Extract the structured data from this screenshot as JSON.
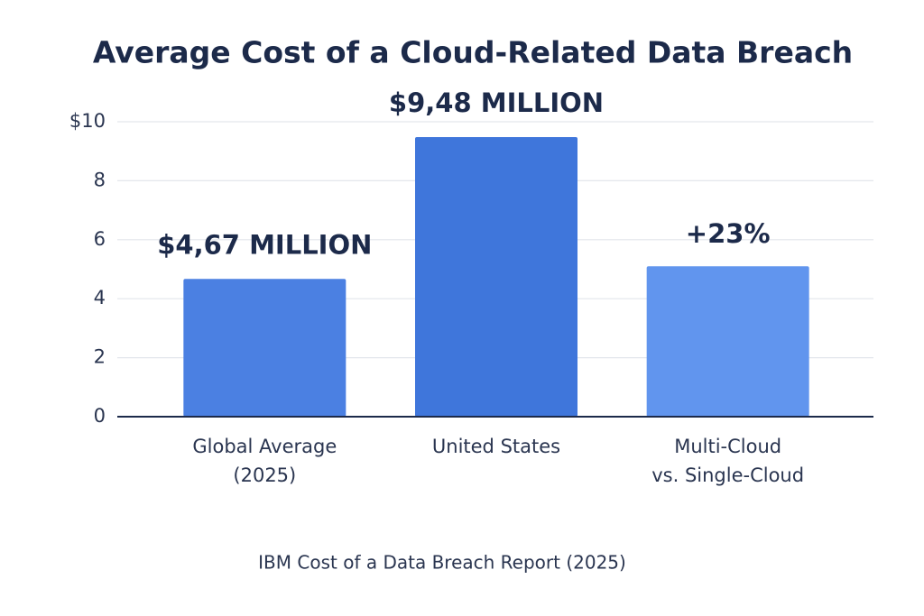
{
  "chart_data": {
    "type": "bar",
    "title": "Average Cost of a Cloud-Related Data Breach",
    "categories": [
      "Global Average\n(2025)",
      "United States",
      "Multi-Cloud\nvs. Single-Cloud"
    ],
    "values": [
      4.67,
      9.48,
      5.1
    ],
    "value_labels": [
      "$4,67 MILLION",
      "$9,48 MILLION",
      null
    ],
    "annotation": "+23%",
    "colors": [
      "#4b80e2",
      "#3f76db",
      "#6195ee"
    ],
    "ylim": [
      0,
      10
    ],
    "yticks": [
      0,
      2,
      4,
      6,
      8,
      {
        "value": 10,
        "label": "$10"
      }
    ],
    "grid": true,
    "source": "IBM Cost of a Data Breach Report (2025)"
  }
}
